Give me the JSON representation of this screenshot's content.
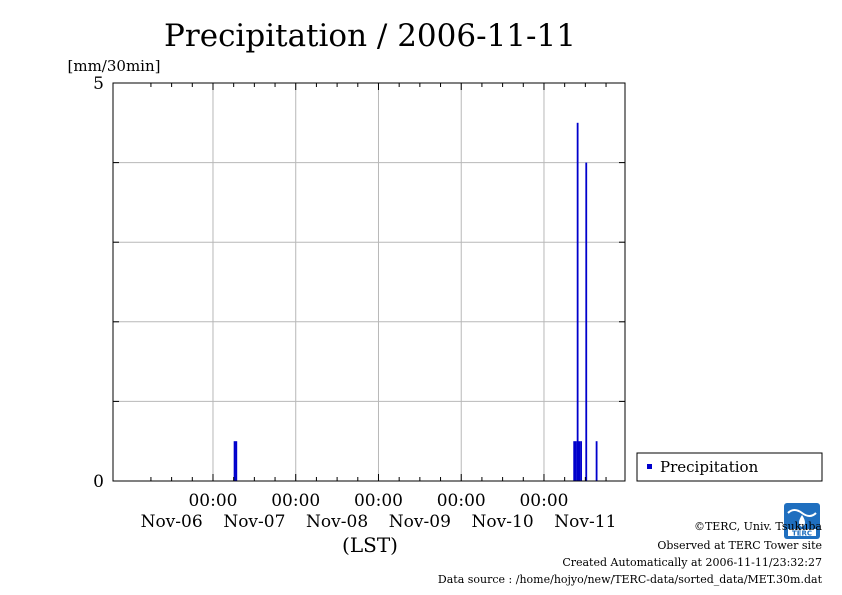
{
  "chart_data": {
    "type": "bar",
    "title": "Precipitation / 2006-11-11",
    "ylabel": "[mm/30min]",
    "xlabel": "(LST)",
    "ylim": [
      0,
      5
    ],
    "y_tick_labels": [
      "5",
      "0"
    ],
    "y_gridlines": [
      1,
      2,
      3,
      4
    ],
    "xlim": [
      "2006-11-05T19:00",
      "2006-11-11T23:30"
    ],
    "x_tick_dates": [
      "2006-11-07T00:00",
      "2006-11-08T00:00",
      "2006-11-09T00:00",
      "2006-11-10T00:00",
      "2006-11-11T00:00"
    ],
    "x_time_label": "00:00",
    "x_date_labels": [
      {
        "text": "Nov-06",
        "date": "2006-11-06T12:00"
      },
      {
        "text": "Nov-07",
        "date": "2006-11-07T12:00"
      },
      {
        "text": "Nov-08",
        "date": "2006-11-08T12:00"
      },
      {
        "text": "Nov-09",
        "date": "2006-11-09T12:00"
      },
      {
        "text": "Nov-10",
        "date": "2006-11-10T12:00"
      },
      {
        "text": "Nov-11",
        "date": "2006-11-11T12:00"
      }
    ],
    "grid": true,
    "legend": {
      "position": "right",
      "entries": [
        "Precipitation"
      ]
    },
    "bar_color": "#0000cc",
    "series": [
      {
        "name": "Precipitation",
        "points": [
          {
            "t": "2006-11-07T06:00",
            "v": 0.5
          },
          {
            "t": "2006-11-07T06:30",
            "v": 0.5
          },
          {
            "t": "2006-11-11T08:30",
            "v": 0.5
          },
          {
            "t": "2006-11-11T09:00",
            "v": 0.5
          },
          {
            "t": "2006-11-11T09:30",
            "v": 4.5
          },
          {
            "t": "2006-11-11T10:00",
            "v": 0.5
          },
          {
            "t": "2006-11-11T10:30",
            "v": 0.5
          },
          {
            "t": "2006-11-11T12:00",
            "v": 4.0
          },
          {
            "t": "2006-11-11T15:00",
            "v": 0.5
          }
        ]
      }
    ]
  },
  "footer": {
    "copyright": "©TERC, Univ. Tsukuba",
    "observed": "Observed at TERC Tower site",
    "created": "Created Automatically at 2006-11-11/23:32:27",
    "source": "Data source : /home/hojyo/new/TERC-data/sorted_data/MET.30m.dat"
  },
  "logo": {
    "text": "TERC",
    "color": "#1f6fbf"
  }
}
